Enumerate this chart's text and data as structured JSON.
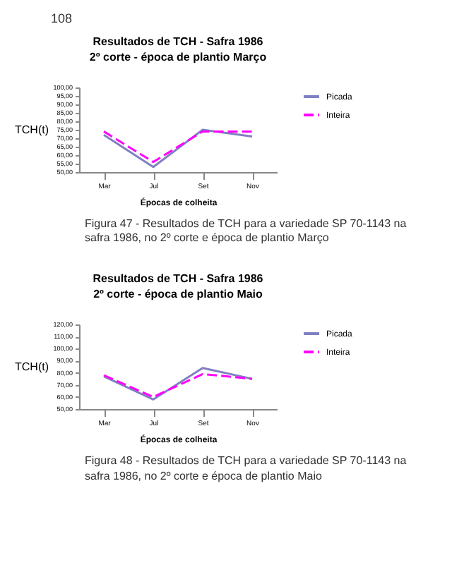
{
  "chart_data": [
    {
      "type": "line",
      "title": "Resultados de TCH - Safra 1986",
      "subtitle": "2º corte - época de plantio Março",
      "xlabel": "Épocas de colheita",
      "ylabel": "TCH(t)",
      "categories": [
        "Mar",
        "Jul",
        "Set",
        "Nov"
      ],
      "series": [
        {
          "name": "Picada",
          "color": "#8080c0",
          "line_style": "solid",
          "values": [
            72,
            53,
            75,
            71
          ]
        },
        {
          "name": "Inteira",
          "color": "#ff00ff",
          "line_style": "dashed",
          "values": [
            74,
            56,
            74,
            74
          ]
        }
      ],
      "ylim": [
        50,
        100
      ],
      "yticks": [
        {
          "value": 50,
          "label": "50,00"
        },
        {
          "value": 55,
          "label": "55,00"
        },
        {
          "value": 60,
          "label": "60,00"
        },
        {
          "value": 65,
          "label": "65,00"
        },
        {
          "value": 70,
          "label": "70,00"
        },
        {
          "value": 75,
          "label": "75,00"
        },
        {
          "value": 80,
          "label": "80,00"
        },
        {
          "value": 85,
          "label": "85,00"
        },
        {
          "value": 90,
          "label": "90,00"
        },
        {
          "value": 95,
          "label": "95,00"
        },
        {
          "value": 100,
          "label": "100,00"
        }
      ],
      "legend": "right",
      "marker": "none",
      "annotations": [
        "108",
        "Figura 47 - Resultados de TCH para a variedade SP 70-1143 na safra 1986, no 2º corte e época de plantio Março"
      ]
    },
    {
      "type": "line",
      "title": "Resultados de TCH - Safra 1986",
      "subtitle": "2º corte - época de plantio Maio",
      "xlabel": "Épocas de colheita",
      "ylabel": "TCH(t)",
      "categories": [
        "Mar",
        "Jul",
        "Set",
        "Nov"
      ],
      "series": [
        {
          "name": "Picada",
          "color": "#8080c0",
          "line_style": "solid",
          "values": [
            77,
            58,
            84,
            75
          ]
        },
        {
          "name": "Inteira",
          "color": "#ff00ff",
          "line_style": "dashed",
          "values": [
            78,
            60,
            79,
            75
          ]
        }
      ],
      "ylim": [
        50,
        120
      ],
      "yticks": [
        {
          "value": 50,
          "label": "50,00"
        },
        {
          "value": 60,
          "label": "60,00"
        },
        {
          "value": 70,
          "label": "70,00"
        },
        {
          "value": 80,
          "label": "80,00"
        },
        {
          "value": 90,
          "label": "90,00"
        },
        {
          "value": 100,
          "label": "100,00"
        },
        {
          "value": 110,
          "label": "110,00"
        },
        {
          "value": 120,
          "label": "120,00"
        }
      ],
      "legend": "right",
      "marker": "none",
      "annotations": [
        "Figura 48 - Resultados de TCH para a variedade SP 70-1143 na safra 1986, no 2º corte e época de plantio Maio"
      ]
    }
  ]
}
